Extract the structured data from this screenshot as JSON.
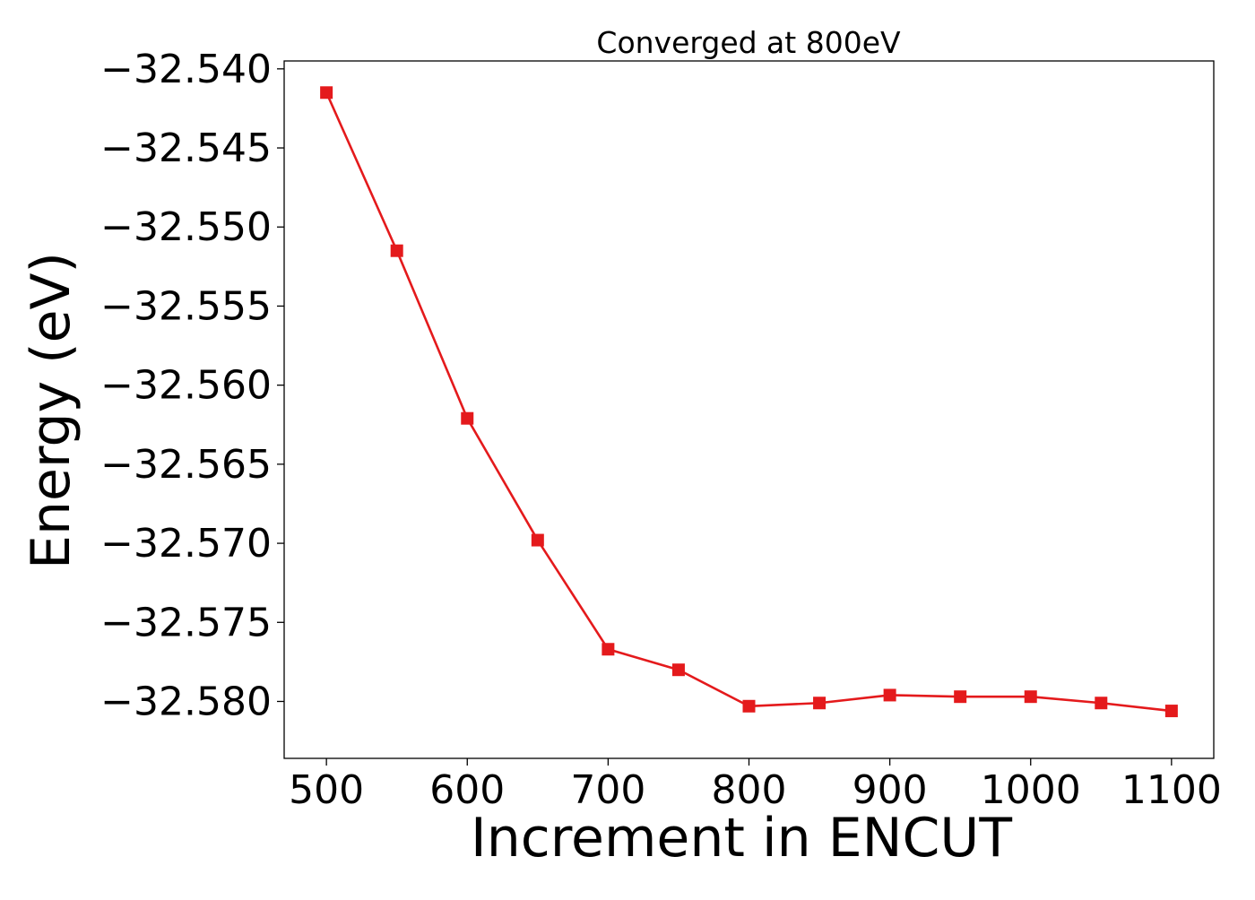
{
  "chart_data": {
    "type": "line",
    "title": "Converged at 800eV",
    "xlabel": "Increment in ENCUT",
    "ylabel": "Energy (eV)",
    "x": [
      500,
      550,
      600,
      650,
      700,
      750,
      800,
      850,
      900,
      950,
      1000,
      1050,
      1100
    ],
    "series": [
      {
        "values": [
          -32.5415,
          -32.5515,
          -32.5621,
          -32.5698,
          -32.5767,
          -32.578,
          -32.5803,
          -32.5801,
          -32.5796,
          -32.5797,
          -32.5797,
          -32.5801,
          -32.5806
        ],
        "color": "#e41a1c",
        "marker": "square"
      }
    ],
    "xlim": [
      470,
      1130
    ],
    "ylim": [
      -32.5836,
      -32.5395
    ],
    "xticks": [
      500,
      600,
      700,
      800,
      900,
      1000,
      1100
    ],
    "xtick_labels": [
      "500",
      "600",
      "700",
      "800",
      "900",
      "1000",
      "1100"
    ],
    "yticks": [
      -32.54,
      -32.545,
      -32.55,
      -32.555,
      -32.56,
      -32.565,
      -32.57,
      -32.575,
      -32.58
    ],
    "ytick_labels": [
      "−32.540",
      "−32.545",
      "−32.550",
      "−32.555",
      "−32.560",
      "−32.565",
      "−32.570",
      "−32.575",
      "−32.580"
    ],
    "grid": false,
    "legend": false
  }
}
